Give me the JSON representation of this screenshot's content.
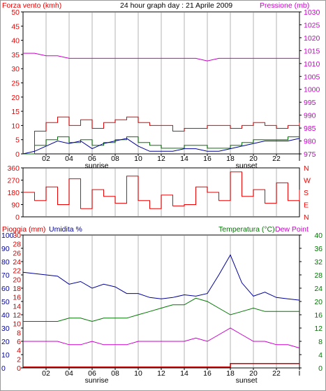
{
  "title": "24 hour graph day : 21 Aprile 2009",
  "colors": {
    "wind": "#ee0000",
    "wind_avg": "#007700",
    "pressure": "#cc00cc",
    "direction": "#ee0000",
    "humidity": "#000099",
    "temperature": "#007700",
    "dewpoint": "#cc00cc",
    "rain": "#cc0000",
    "grid": "#d9d9d9",
    "axis": "#000000"
  },
  "x_ticks": [
    "02",
    "04",
    "06",
    "08",
    "10",
    "12",
    "14",
    "16",
    "18",
    "20",
    "22",
    "I"
  ],
  "sunrise_label": "sunrise",
  "sunset_label": "sunset",
  "chart_data": [
    {
      "type": "line",
      "panel": "wind-pressure",
      "title": "24 hour graph day : 21 Aprile 2009",
      "left_label": "Forza vento (kmh)",
      "right_label": "Pressione (mb)",
      "left_ticks": [
        "0",
        "5",
        "10",
        "15",
        "20",
        "25",
        "30",
        "35",
        "40",
        "45",
        "50"
      ],
      "right_ticks": [
        "975",
        "980",
        "985",
        "990",
        "995",
        "1000",
        "1005",
        "1010",
        "1015",
        "1020",
        "1025",
        "1030"
      ],
      "ylim_left": [
        0,
        50
      ],
      "ylim_right": [
        975,
        1030
      ],
      "x_hours": [
        0,
        1,
        2,
        3,
        4,
        5,
        6,
        7,
        8,
        9,
        10,
        11,
        12,
        13,
        14,
        15,
        16,
        17,
        18,
        19,
        20,
        21,
        22,
        23,
        24
      ],
      "series": [
        {
          "name": "Forza vento (kmh)",
          "axis": "left",
          "style": "step",
          "values": [
            0,
            8,
            11,
            13,
            10,
            12,
            9,
            11,
            12,
            13,
            11,
            10,
            10,
            8,
            9,
            9,
            10,
            10,
            9,
            10,
            11,
            10,
            9,
            10,
            11
          ]
        },
        {
          "name": "",
          "axis": "left",
          "style": "step",
          "values": [
            0,
            3,
            5,
            6,
            4,
            5,
            3,
            4,
            5,
            6,
            4,
            3,
            2,
            2,
            3,
            3,
            2,
            2,
            3,
            4,
            5,
            5,
            5,
            6,
            6
          ]
        },
        {
          "name": "",
          "axis": "right",
          "style": "line",
          "values": [
            975,
            976,
            978,
            980,
            979,
            980,
            977,
            979,
            980,
            981,
            978,
            976,
            976,
            976,
            977,
            977,
            976,
            976,
            977,
            978,
            979,
            980,
            980,
            980,
            981
          ]
        },
        {
          "name": "Pressione (mb)",
          "axis": "right",
          "style": "line",
          "values": [
            1014,
            1014,
            1013,
            1013,
            1012,
            1012,
            1012,
            1012,
            1012,
            1012,
            1012,
            1012,
            1012,
            1012,
            1012,
            1012,
            1011,
            1012,
            1012,
            1012,
            1012,
            1012,
            1012,
            1012,
            1012
          ]
        }
      ]
    },
    {
      "type": "line",
      "panel": "direction",
      "left_ticks": [
        "0",
        "90",
        "180",
        "270",
        "360"
      ],
      "right_ticks": [
        "N",
        "W",
        "S",
        "E",
        "N"
      ],
      "ylim": [
        0,
        360
      ],
      "x_hours": [
        0,
        1,
        2,
        3,
        4,
        5,
        6,
        7,
        8,
        9,
        10,
        11,
        12,
        13,
        14,
        15,
        16,
        17,
        18,
        19,
        20,
        21,
        22,
        23,
        24
      ],
      "series": [
        {
          "name": "",
          "style": "step",
          "values": [
            180,
            120,
            220,
            90,
            280,
            60,
            200,
            150,
            100,
            300,
            120,
            60,
            160,
            80,
            90,
            220,
            180,
            120,
            330,
            150,
            200,
            100,
            250,
            120,
            200
          ]
        }
      ]
    },
    {
      "type": "line",
      "panel": "rain-humidity-temperature",
      "left_label_rain": "Pioggia (mm)",
      "left_label_humidity": "Umidita %",
      "right_label_temp": "Temperatura (°C)",
      "right_label_dew": "Dew Point",
      "humidity_ticks": [
        "0",
        "10",
        "20",
        "30",
        "40",
        "50",
        "60",
        "70",
        "80",
        "90",
        "100"
      ],
      "rain_ticks": [
        "0",
        "2",
        "4",
        "6",
        "8",
        "10",
        "12",
        "14",
        "16",
        "18",
        "20",
        "22",
        "24",
        "26",
        "28",
        "30"
      ],
      "temp_ticks": [
        "0",
        "4",
        "8",
        "12",
        "16",
        "20",
        "24",
        "28",
        "32",
        "36",
        "40"
      ],
      "ylim_humidity": [
        0,
        100
      ],
      "ylim_rain": [
        0,
        30
      ],
      "ylim_temp": [
        0,
        40
      ],
      "x_hours": [
        0,
        1,
        2,
        3,
        4,
        5,
        6,
        7,
        8,
        9,
        10,
        11,
        12,
        13,
        14,
        15,
        16,
        17,
        18,
        19,
        20,
        21,
        22,
        23,
        24
      ],
      "series": [
        {
          "name": "Umidita %",
          "axis": "humidity",
          "values": [
            72,
            71,
            70,
            69,
            63,
            65,
            60,
            63,
            61,
            56,
            56,
            53,
            52,
            53,
            55,
            54,
            56,
            70,
            85,
            64,
            54,
            57,
            53,
            52,
            51
          ]
        },
        {
          "name": "Temperatura (°C)",
          "axis": "temp",
          "values": [
            14,
            14,
            14,
            14,
            15,
            15,
            14,
            15,
            15,
            15,
            16,
            17,
            18,
            19,
            19,
            21,
            20,
            18,
            16,
            17,
            18,
            17,
            17,
            17,
            17
          ]
        },
        {
          "name": "Dew Point",
          "axis": "temp",
          "values": [
            8,
            8,
            8,
            8,
            7,
            7,
            8,
            7,
            7,
            7,
            8,
            8,
            8,
            8,
            8,
            9,
            8,
            10,
            12,
            10,
            8,
            8,
            7,
            7,
            6
          ]
        },
        {
          "name": "Pioggia (mm)",
          "axis": "rain",
          "style": "step",
          "values": [
            0.2,
            0.2,
            0.2,
            0.2,
            0.2,
            0.2,
            0.2,
            0.2,
            0.2,
            0.2,
            0.2,
            0.2,
            0.2,
            0.2,
            0.2,
            0.2,
            0.2,
            0.2,
            1.0,
            1.0,
            1.0,
            1.0,
            1.0,
            1.0,
            1.0
          ]
        }
      ]
    }
  ]
}
